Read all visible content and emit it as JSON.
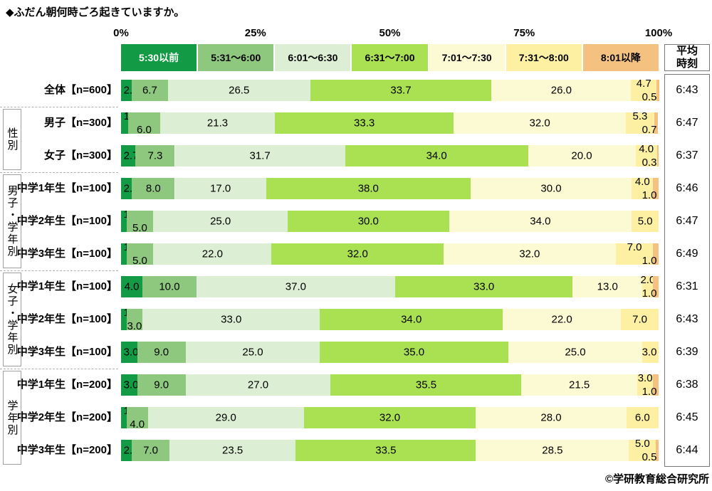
{
  "title": "◆ふだん朝何時ごろ起きていますか。",
  "footer": "©学研教育総合研究所",
  "axis_ticks": [
    "0%",
    "25%",
    "50%",
    "75%",
    "100%"
  ],
  "avg_column": {
    "header": "平均時刻"
  },
  "legend": [
    {
      "label": "5:30以前",
      "color": "#129a44",
      "text_color": "#ffffff"
    },
    {
      "label": "5:31〜6:00",
      "color": "#8dc87e",
      "text_color": "#000000"
    },
    {
      "label": "6:01〜6:30",
      "color": "#dceed3",
      "text_color": "#000000"
    },
    {
      "label": "6:31〜7:00",
      "color": "#a9e153",
      "text_color": "#000000"
    },
    {
      "label": "7:01〜7:30",
      "color": "#fbfad3",
      "text_color": "#000000"
    },
    {
      "label": "7:31〜8:00",
      "color": "#fdf0a3",
      "text_color": "#000000"
    },
    {
      "label": "8:01以降",
      "color": "#f5c181",
      "text_color": "#000000"
    }
  ],
  "chart_data": {
    "type": "bar",
    "stacked": true,
    "orientation": "horizontal",
    "unit": "%",
    "xlim": [
      0,
      100
    ],
    "categories": [
      "5:30以前",
      "5:31〜6:00",
      "6:01〜6:30",
      "6:31〜7:00",
      "7:01〜7:30",
      "7:31〜8:00",
      "8:01以降"
    ],
    "rows": [
      {
        "label": "全体【n=600】",
        "values": [
          2.0,
          6.7,
          26.5,
          33.7,
          26.0,
          4.7,
          0.5
        ],
        "avg": "6:43"
      },
      {
        "label": "男子【n=300】",
        "values": [
          1.3,
          6.0,
          21.3,
          33.3,
          32.0,
          5.3,
          0.7
        ],
        "avg": "6:47"
      },
      {
        "label": "女子【n=300】",
        "values": [
          2.7,
          7.3,
          31.7,
          34.0,
          20.0,
          4.0,
          0.3
        ],
        "avg": "6:37"
      },
      {
        "label": "中学1年生【n=100】",
        "values": [
          2.0,
          8.0,
          17.0,
          38.0,
          30.0,
          4.0,
          1.0
        ],
        "avg": "6:46"
      },
      {
        "label": "中学2年生【n=100】",
        "values": [
          1.0,
          5.0,
          25.0,
          30.0,
          34.0,
          5.0,
          0
        ],
        "avg": "6:47"
      },
      {
        "label": "中学3年生【n=100】",
        "values": [
          1.0,
          5.0,
          22.0,
          32.0,
          32.0,
          7.0,
          1.0
        ],
        "avg": "6:49"
      },
      {
        "label": "中学1年生【n=100】",
        "values": [
          4.0,
          10.0,
          37.0,
          33.0,
          13.0,
          2.0,
          1.0
        ],
        "avg": "6:31"
      },
      {
        "label": "中学2年生【n=100】",
        "values": [
          1.0,
          3.0,
          33.0,
          34.0,
          22.0,
          7.0,
          0
        ],
        "avg": "6:43"
      },
      {
        "label": "中学3年生【n=100】",
        "values": [
          3.0,
          9.0,
          25.0,
          35.0,
          25.0,
          3.0,
          0
        ],
        "avg": "6:39"
      },
      {
        "label": "中学1年生【n=200】",
        "values": [
          3.0,
          9.0,
          27.0,
          35.5,
          21.5,
          3.0,
          1.0
        ],
        "avg": "6:38"
      },
      {
        "label": "中学2年生【n=200】",
        "values": [
          1.0,
          4.0,
          29.0,
          32.0,
          28.0,
          6.0,
          0
        ],
        "avg": "6:45"
      },
      {
        "label": "中学3年生【n=200】",
        "values": [
          2.0,
          7.0,
          23.5,
          33.5,
          28.5,
          5.0,
          0.5
        ],
        "avg": "6:44"
      }
    ],
    "groups": [
      {
        "label": "性別",
        "start": 1,
        "count": 2
      },
      {
        "label": "男子・学年別",
        "start": 3,
        "count": 3
      },
      {
        "label": "女子・学年別",
        "start": 6,
        "count": 3
      },
      {
        "label": "学年別",
        "start": 9,
        "count": 3
      }
    ]
  }
}
